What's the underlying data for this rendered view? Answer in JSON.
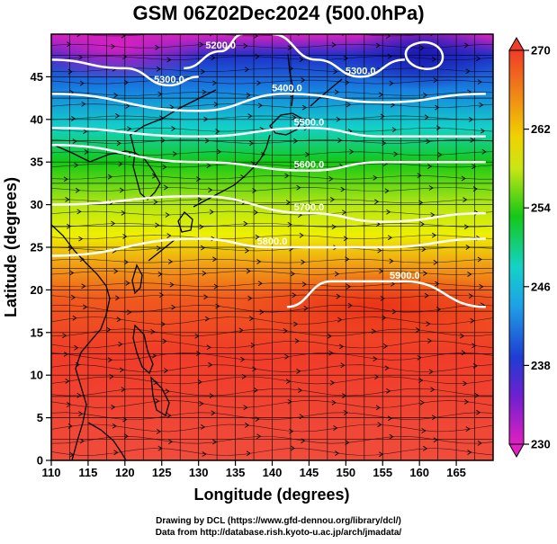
{
  "title": "GSM 06Z02Dec2024 (500.0hPa)",
  "x_axis_label": "Longitude (degrees)",
  "y_axis_label": "Latitude  (degrees)",
  "x_ticks": [
    "110",
    "115",
    "120",
    "125",
    "130",
    "135",
    "140",
    "145",
    "150",
    "155",
    "160",
    "165"
  ],
  "y_ticks": [
    "0",
    "5",
    "10",
    "15",
    "20",
    "25",
    "30",
    "35",
    "40",
    "45"
  ],
  "colorbar_ticks": [
    "230",
    "238",
    "246",
    "254",
    "262",
    "270"
  ],
  "contour_labels": [
    "5300.0",
    "5200.0",
    "5300.0",
    "5400.0",
    "5500.0",
    "5600.0",
    "5700.0",
    "5800.0",
    "5900.0"
  ],
  "credits": {
    "line1": "Drawing by DCL (https://www.gfd-dennou.org/library/dcl/)",
    "line2": "Data from http://database.rish.kyoto-u.ac.jp/arch/jmadata/"
  },
  "chart_data": {
    "type": "heatmap",
    "title": "GSM 06Z02Dec2024 (500.0hPa)",
    "xlabel": "Longitude (degrees)",
    "ylabel": "Latitude  (degrees)",
    "xlim": [
      110,
      170
    ],
    "ylim": [
      0,
      50
    ],
    "colorbar": {
      "min": 230,
      "max": 270,
      "ticks": [
        230,
        238,
        246,
        254,
        262,
        270
      ]
    },
    "colors": {
      "magenta": "#e020c0",
      "blue": "#1e3cd2",
      "cyan": "#14d2d2",
      "green": "#14c814",
      "yellow": "#eef000",
      "orange": "#f08c14",
      "red": "#f03c28",
      "contour": "#ffffff",
      "coast": "#000000",
      "streamline": "#000000"
    },
    "contours": [
      {
        "label": "5300.0",
        "lat_at_lon": [
          [
            110,
            47
          ],
          [
            120,
            46
          ],
          [
            126,
            44
          ],
          [
            130,
            45
          ]
        ]
      },
      {
        "label": "5200.0",
        "lat_at_lon": [
          [
            128,
            46
          ],
          [
            133,
            48
          ],
          [
            136,
            50
          ]
        ]
      },
      {
        "label": "5300.0",
        "lat_at_lon": [
          [
            140,
            50
          ],
          [
            146,
            47
          ],
          [
            152,
            45
          ],
          [
            158,
            47
          ]
        ]
      },
      {
        "label": "5400.0",
        "lat_at_lon": [
          [
            110,
            43
          ],
          [
            130,
            41
          ],
          [
            142,
            43
          ],
          [
            155,
            42
          ],
          [
            169,
            43
          ]
        ]
      },
      {
        "label": "5500.0",
        "lat_at_lon": [
          [
            110,
            39
          ],
          [
            130,
            38
          ],
          [
            145,
            39
          ],
          [
            155,
            38
          ],
          [
            169,
            38
          ]
        ]
      },
      {
        "label": "5600.0",
        "lat_at_lon": [
          [
            110,
            37
          ],
          [
            130,
            35
          ],
          [
            145,
            34
          ],
          [
            155,
            35
          ],
          [
            169,
            35
          ]
        ]
      },
      {
        "label": "5700.0",
        "lat_at_lon": [
          [
            110,
            30
          ],
          [
            130,
            31
          ],
          [
            145,
            29
          ],
          [
            155,
            28
          ],
          [
            169,
            29
          ]
        ]
      },
      {
        "label": "5800.0",
        "lat_at_lon": [
          [
            110,
            24
          ],
          [
            130,
            26
          ],
          [
            140,
            25
          ],
          [
            155,
            25
          ],
          [
            169,
            26
          ]
        ]
      },
      {
        "label": "5900.0",
        "lat_at_lon": [
          [
            142,
            18
          ],
          [
            148,
            21
          ],
          [
            158,
            21
          ],
          [
            169,
            18
          ]
        ]
      }
    ]
  }
}
